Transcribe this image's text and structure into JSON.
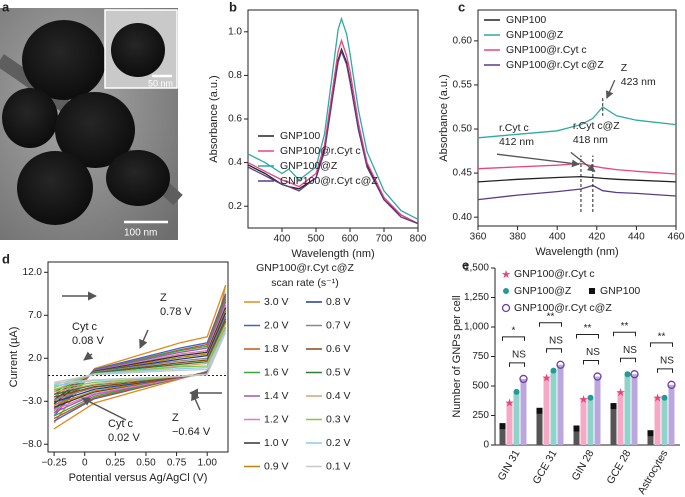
{
  "panel_a": {
    "panel": "a",
    "inset_scale_bar": "50 nm",
    "scale_bar": "100 nm"
  },
  "chart_data": [
    {
      "type": "line",
      "panel": "b",
      "x_label": "Wavelength (nm)",
      "y_label": "Absorbance (a.u.)",
      "x": [
        300,
        350,
        400,
        420,
        450,
        500,
        525,
        550,
        565,
        575,
        590,
        600,
        625,
        650,
        700,
        750,
        800
      ],
      "xlim": [
        300,
        800
      ],
      "xticks": [
        400,
        500,
        600,
        700,
        800
      ],
      "ylim": [
        0.1,
        1.1
      ],
      "yticks": [
        0.2,
        0.4,
        0.6,
        0.8,
        {
          "value": 1.0,
          "label": "1.0"
        }
      ],
      "legend": "lower left",
      "series": [
        {
          "name": "GNP100",
          "color": "#222222",
          "values": [
            0.39,
            0.35,
            0.3,
            0.29,
            0.28,
            0.33,
            0.46,
            0.72,
            0.87,
            0.92,
            0.86,
            0.78,
            0.55,
            0.39,
            0.23,
            0.16,
            0.12
          ]
        },
        {
          "name": "GNP100@r.Cyt c",
          "color": "#e8457c",
          "values": [
            0.4,
            0.36,
            0.32,
            0.31,
            0.29,
            0.35,
            0.48,
            0.75,
            0.91,
            0.96,
            0.89,
            0.82,
            0.58,
            0.4,
            0.24,
            0.16,
            0.12
          ]
        },
        {
          "name": "GNP100@Z",
          "color": "#2fa9a3",
          "values": [
            0.44,
            0.4,
            0.35,
            0.37,
            0.32,
            0.38,
            0.53,
            0.83,
            1.01,
            1.06,
            0.99,
            0.9,
            0.64,
            0.45,
            0.27,
            0.18,
            0.14
          ]
        },
        {
          "name": "GNP100@r.Cyt c@Z",
          "color": "#5b3a8c",
          "values": [
            0.38,
            0.34,
            0.3,
            0.29,
            0.27,
            0.33,
            0.45,
            0.71,
            0.86,
            0.91,
            0.85,
            0.77,
            0.55,
            0.38,
            0.23,
            0.15,
            0.12
          ]
        }
      ]
    },
    {
      "type": "line",
      "panel": "c",
      "x_label": "Wavelength (nm)",
      "y_label": "Absorbance (a.u.)",
      "x": [
        360,
        380,
        400,
        412,
        418,
        423,
        430,
        440,
        460
      ],
      "xlim": [
        360,
        460
      ],
      "xticks": [
        360,
        380,
        400,
        420,
        440,
        460
      ],
      "ylim": [
        0.39,
        0.635
      ],
      "yticks": [
        {
          "value": 0.4,
          "label": "0.40"
        },
        0.45,
        {
          "value": 0.5,
          "label": "0.50"
        },
        0.55,
        {
          "value": 0.6,
          "label": "0.60"
        }
      ],
      "legend": "upper left",
      "series": [
        {
          "name": "GNP100",
          "color": "#222222",
          "values": [
            0.44,
            0.443,
            0.445,
            0.446,
            0.445,
            0.444,
            0.443,
            0.442,
            0.44
          ]
        },
        {
          "name": "GNP100@Z",
          "color": "#2fa9a3",
          "values": [
            0.49,
            0.494,
            0.498,
            0.505,
            0.512,
            0.525,
            0.515,
            0.51,
            0.505
          ]
        },
        {
          "name": "GNP100@r.Cyt c",
          "color": "#e8457c",
          "values": [
            0.455,
            0.457,
            0.459,
            0.461,
            0.458,
            0.456,
            0.454,
            0.452,
            0.449
          ]
        },
        {
          "name": "GNP100@r.Cyt c@Z",
          "color": "#5b3a8c",
          "values": [
            0.42,
            0.425,
            0.429,
            0.432,
            0.436,
            0.43,
            0.428,
            0.427,
            0.424
          ]
        }
      ],
      "annotations": [
        {
          "lines": [
            "Z",
            "423 nm"
          ],
          "x": 423
        },
        {
          "lines": [
            "r.Cyt c",
            "412 nm"
          ],
          "x": 412
        },
        {
          "lines": [
            "r.Cyt c@Z",
            "418 nm"
          ],
          "x": 418
        }
      ]
    },
    {
      "type": "voltammogram",
      "panel": "d",
      "x_label": "Potential versus Ag/AgCl (V)",
      "y_label": "Current (µA)",
      "legend_title": "GNP100@r.Cyt c@Z",
      "legend_subtitle": "scan rate (s⁻¹)",
      "x": [
        -0.25,
        0.08,
        0.78,
        1.0,
        1.15
      ],
      "xlim": [
        -0.3,
        1.17
      ],
      "xticks": [
        {
          "value": -0.25,
          "label": "−0.25"
        },
        0,
        0.25,
        {
          "value": 0.5,
          "label": "0.50"
        },
        0.75,
        {
          "value": 1.0,
          "label": "1.00"
        }
      ],
      "ylim": [
        -8.9,
        13.2
      ],
      "yticks": [
        {
          "value": -8,
          "label": "−8.0"
        },
        {
          "value": -3,
          "label": "−3.0"
        },
        {
          "value": 2,
          "label": "2.0"
        },
        {
          "value": 7,
          "label": "7.0"
        },
        {
          "value": 12,
          "label": "12.0"
        }
      ],
      "annotations": [
        [
          "Z",
          "0.78 V"
        ],
        [
          "Cyt c",
          "0.08 V"
        ],
        [
          "Cyt c",
          "0.02 V"
        ],
        [
          "Z",
          "−0.64 V"
        ]
      ],
      "series": [
        {
          "name": "3.0 V",
          "color": "#e08a1e",
          "forward": [
            -5.5,
            0.8,
            3.8,
            4.5,
            10.5
          ],
          "reverse": [
            -6.2,
            -3.2,
            -0.4,
            0.5,
            10.5
          ]
        },
        {
          "name": "2.0 V",
          "color": "#3f5fcf",
          "forward": [
            -4.7,
            0.7,
            3.2,
            3.8,
            9.5
          ],
          "reverse": [
            -5.3,
            -2.7,
            -0.3,
            0.4,
            9.5
          ]
        },
        {
          "name": "1.8 V",
          "color": "#c0561b",
          "forward": [
            -4.4,
            0.6,
            3.0,
            3.6,
            9.2
          ],
          "reverse": [
            -5.0,
            -2.6,
            -0.3,
            0.4,
            9.2
          ]
        },
        {
          "name": "1.6 V",
          "color": "#3aa63a",
          "forward": [
            -4.1,
            0.6,
            2.9,
            3.4,
            8.9
          ],
          "reverse": [
            -4.7,
            -2.4,
            -0.3,
            0.4,
            8.9
          ]
        },
        {
          "name": "1.4 V",
          "color": "#9b59b6",
          "forward": [
            -3.9,
            0.6,
            2.7,
            3.2,
            8.6
          ],
          "reverse": [
            -4.3,
            -2.2,
            -0.3,
            0.4,
            8.6
          ]
        },
        {
          "name": "1.2 V",
          "color": "#e377c2",
          "forward": [
            -3.6,
            0.5,
            2.5,
            2.9,
            8.2
          ],
          "reverse": [
            -4.0,
            -2.1,
            -0.3,
            0.3,
            8.2
          ]
        },
        {
          "name": "1.0 V",
          "color": "#333333",
          "forward": [
            -3.3,
            0.5,
            2.3,
            2.7,
            7.9
          ],
          "reverse": [
            -3.7,
            -1.9,
            -0.2,
            0.3,
            7.9
          ]
        },
        {
          "name": "0.9 V",
          "color": "#b8860b",
          "forward": [
            -3.0,
            0.4,
            2.1,
            2.5,
            7.6
          ],
          "reverse": [
            -3.4,
            -1.8,
            -0.2,
            0.3,
            7.6
          ]
        },
        {
          "name": "0.8 V",
          "color": "#1f3a93",
          "forward": [
            -2.8,
            0.4,
            1.9,
            2.3,
            7.3
          ],
          "reverse": [
            -3.1,
            -1.6,
            -0.2,
            0.3,
            7.3
          ]
        },
        {
          "name": "0.7 V",
          "color": "#888888",
          "forward": [
            -2.5,
            0.4,
            1.7,
            2.0,
            6.9
          ],
          "reverse": [
            -2.8,
            -1.4,
            -0.2,
            0.2,
            6.9
          ]
        },
        {
          "name": "0.6 V",
          "color": "#8b4513",
          "forward": [
            -2.2,
            0.3,
            1.5,
            1.8,
            6.6
          ],
          "reverse": [
            -2.5,
            -1.3,
            -0.2,
            0.2,
            6.6
          ]
        },
        {
          "name": "0.5 V",
          "color": "#2e7d32",
          "forward": [
            -1.9,
            0.3,
            1.3,
            1.6,
            6.3
          ],
          "reverse": [
            -2.2,
            -1.1,
            -0.1,
            0.2,
            6.3
          ]
        },
        {
          "name": "0.4 V",
          "color": "#d2a679",
          "forward": [
            -1.7,
            0.2,
            1.1,
            1.4,
            6.0
          ],
          "reverse": [
            -1.9,
            -1.0,
            -0.1,
            0.2,
            6.0
          ]
        },
        {
          "name": "0.3 V",
          "color": "#8bc34a",
          "forward": [
            -1.4,
            0.2,
            1.0,
            1.1,
            5.6
          ],
          "reverse": [
            -1.6,
            -0.8,
            -0.1,
            0.1,
            5.6
          ]
        },
        {
          "name": "0.2 V",
          "color": "#87ceeb",
          "forward": [
            -1.1,
            0.2,
            0.8,
            0.9,
            5.3
          ],
          "reverse": [
            -1.2,
            -0.6,
            -0.1,
            0.1,
            5.3
          ]
        },
        {
          "name": "0.1 V",
          "color": "#c8c8c8",
          "forward": [
            -0.8,
            0.1,
            0.6,
            0.7,
            5.0
          ],
          "reverse": [
            -0.9,
            -0.5,
            -0.1,
            0.1,
            5.0
          ]
        }
      ]
    },
    {
      "type": "bar",
      "panel": "e",
      "y_label": "Number of GNPs per cell",
      "categories": [
        "GIN 31",
        "GCE 31",
        "GIN 28",
        "GCE 28",
        "Astrocytes"
      ],
      "ylim": [
        0,
        1500
      ],
      "yticks": [
        0,
        250,
        500,
        750,
        {
          "value": 1000,
          "label": "1,000"
        },
        {
          "value": 1250,
          "label": "1,250"
        },
        {
          "value": 1500,
          "label": "1,500"
        }
      ],
      "legend": "upper left",
      "significance": [
        [
          "*",
          "NS"
        ],
        [
          "**",
          "NS"
        ],
        [
          "**",
          "NS"
        ],
        [
          "**",
          "NS"
        ],
        [
          "**",
          "NS"
        ]
      ],
      "series": [
        {
          "name": "GNP100",
          "color": "#111111",
          "bar_color": "#555555",
          "marker": "square",
          "values": [
            160,
            290,
            140,
            330,
            100
          ]
        },
        {
          "name": "GNP100@r.Cyt c",
          "color": "#e8457c",
          "bar_color": "#f5a9c4",
          "marker": "star",
          "values": [
            360,
            570,
            390,
            450,
            400
          ]
        },
        {
          "name": "GNP100@Z",
          "color": "#1f9c94",
          "bar_color": "#8fd3cb",
          "marker": "circle",
          "values": [
            450,
            630,
            400,
            600,
            400
          ]
        },
        {
          "name": "GNP100@r.Cyt c@Z",
          "color": "#6a3fa0",
          "bar_color": "#bba7dd",
          "marker": "open-circle",
          "values": [
            560,
            680,
            580,
            600,
            510
          ]
        }
      ]
    }
  ]
}
